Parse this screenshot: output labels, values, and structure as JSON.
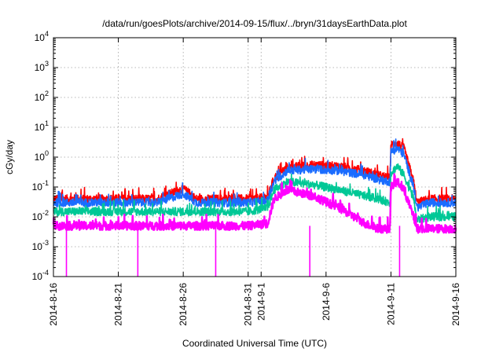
{
  "chart_data": {
    "type": "line",
    "title": "/data/run/goesPlots/archive/2014-09-15/flux/../bryn/31daysEarthData.plot",
    "xlabel": "Coordinated Universal Time (UTC)",
    "ylabel": "cGy/day",
    "yscale": "log",
    "ylim": [
      0.0001,
      10000
    ],
    "xlim": [
      "2014-08-16",
      "2014-09-16"
    ],
    "grid": true,
    "legend": "none",
    "x_ticks": [
      "2014-8-16",
      "2014-8-21",
      "2014-8-26",
      "2014-8-31",
      "2014-9-1",
      "2014-9-6",
      "2014-9-11",
      "2014-9-16"
    ],
    "y_ticks": [
      {
        "base": "10",
        "exp": "-4",
        "value": 0.0001
      },
      {
        "base": "10",
        "exp": "-3",
        "value": 0.001
      },
      {
        "base": "10",
        "exp": "-2",
        "value": 0.01
      },
      {
        "base": "10",
        "exp": "-1",
        "value": 0.1
      },
      {
        "base": "10",
        "exp": "0",
        "value": 1
      },
      {
        "base": "10",
        "exp": "1",
        "value": 10
      },
      {
        "base": "10",
        "exp": "2",
        "value": 100
      },
      {
        "base": "10",
        "exp": "3",
        "value": 1000
      },
      {
        "base": "10",
        "exp": "4",
        "value": 10000
      }
    ],
    "series": [
      {
        "color": "#ff0000",
        "x": [
          "2014-08-16",
          "2014-08-20",
          "2014-08-24",
          "2014-08-26",
          "2014-08-27",
          "2014-08-31",
          "2014-09-01T12",
          "2014-09-02",
          "2014-09-03",
          "2014-09-05",
          "2014-09-07",
          "2014-09-09",
          "2014-09-10",
          "2014-09-10T22",
          "2014-09-11",
          "2014-09-11T12",
          "2014-09-12",
          "2014-09-12T18",
          "2014-09-13",
          "2014-09-14",
          "2014-09-16"
        ],
        "y": [
          0.04,
          0.04,
          0.04,
          0.09,
          0.04,
          0.04,
          0.045,
          0.2,
          0.45,
          0.55,
          0.5,
          0.35,
          0.25,
          0.2,
          2.5,
          3,
          2,
          0.15,
          0.03,
          0.04,
          0.04
        ]
      },
      {
        "color": "#1a6cff",
        "x": [
          "2014-08-16",
          "2014-08-20",
          "2014-08-24",
          "2014-08-26",
          "2014-08-27",
          "2014-08-31",
          "2014-09-01T12",
          "2014-09-02",
          "2014-09-03",
          "2014-09-05",
          "2014-09-07",
          "2014-09-09",
          "2014-09-10",
          "2014-09-10T22",
          "2014-09-11",
          "2014-09-11T12",
          "2014-09-12",
          "2014-09-12T18",
          "2014-09-13",
          "2014-09-14",
          "2014-09-16"
        ],
        "y": [
          0.03,
          0.03,
          0.03,
          0.06,
          0.03,
          0.03,
          0.035,
          0.15,
          0.35,
          0.4,
          0.35,
          0.25,
          0.18,
          0.15,
          1.5,
          2,
          1.2,
          0.1,
          0.02,
          0.03,
          0.03
        ]
      },
      {
        "color": "#00c896",
        "x": [
          "2014-08-16",
          "2014-08-31",
          "2014-09-01T12",
          "2014-09-02",
          "2014-09-03",
          "2014-09-05",
          "2014-09-07",
          "2014-09-09",
          "2014-09-10",
          "2014-09-10T22",
          "2014-09-11",
          "2014-09-11T12",
          "2014-09-12",
          "2014-09-12T18",
          "2014-09-13",
          "2014-09-14",
          "2014-09-16"
        ],
        "y": [
          0.015,
          0.015,
          0.02,
          0.08,
          0.15,
          0.12,
          0.08,
          0.05,
          0.04,
          0.03,
          0.3,
          0.5,
          0.25,
          0.04,
          0.008,
          0.01,
          0.01
        ]
      },
      {
        "color": "#ff00ff",
        "x": [
          "2014-08-16",
          "2014-08-31",
          "2014-09-01T12",
          "2014-09-02",
          "2014-09-03",
          "2014-09-05",
          "2014-09-07",
          "2014-09-09",
          "2014-09-10",
          "2014-09-10T22",
          "2014-09-11",
          "2014-09-11T12",
          "2014-09-12",
          "2014-09-12T18",
          "2014-09-13",
          "2014-09-14",
          "2014-09-16"
        ],
        "y": [
          0.005,
          0.005,
          0.006,
          0.04,
          0.08,
          0.05,
          0.02,
          0.006,
          0.004,
          0.004,
          0.1,
          0.15,
          0.08,
          0.01,
          0.004,
          0.004,
          0.004
        ]
      }
    ],
    "dropouts": [
      {
        "color": "#ff00ff",
        "x": [
          "2014-08-17",
          "2014-08-22T12",
          "2014-08-28T12",
          "2014-09-04T18",
          "2014-09-11T16"
        ],
        "y": 0.0001
      }
    ]
  }
}
